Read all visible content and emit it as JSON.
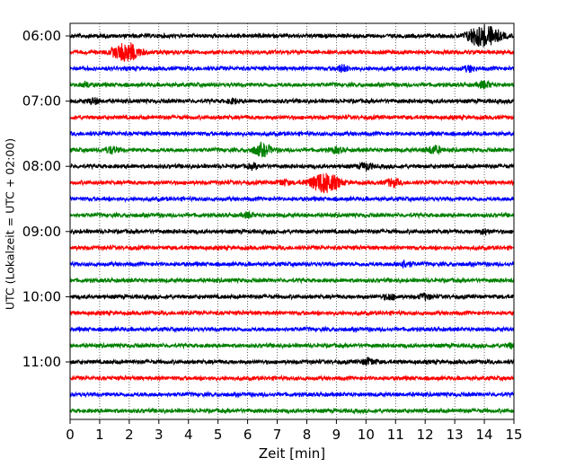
{
  "chart_data": {
    "type": "line",
    "title": "",
    "xlabel": "Zeit  [min]",
    "ylabel": "UTC (Lokalzeit = UTC + 02:00)",
    "xlim": [
      0,
      15
    ],
    "x_ticks": [
      "0",
      "1",
      "2",
      "3",
      "4",
      "5",
      "6",
      "7",
      "8",
      "9",
      "10",
      "11",
      "12",
      "13",
      "14",
      "15"
    ],
    "y_tick_labels": [
      "06:00",
      "07:00",
      "08:00",
      "09:00",
      "10:00",
      "11:00"
    ],
    "y_tick_rows": [
      0,
      4,
      8,
      12,
      16,
      20
    ],
    "rows": 24,
    "grid": "vertical dotted",
    "legend": "none",
    "series_colors": [
      "#000000",
      "#ff0000",
      "#0000ff",
      "#008000"
    ],
    "events": [
      {
        "row": 0,
        "minute": 14.05,
        "amplitude": 1.0
      },
      {
        "row": 0,
        "minute": 13.6,
        "amplitude": 0.35
      },
      {
        "row": 1,
        "minute": 1.9,
        "amplitude": 0.9
      },
      {
        "row": 2,
        "minute": 9.2,
        "amplitude": 0.3
      },
      {
        "row": 2,
        "minute": 13.5,
        "amplitude": 0.25
      },
      {
        "row": 3,
        "minute": 14.0,
        "amplitude": 0.3
      },
      {
        "row": 3,
        "minute": 0.5,
        "amplitude": 0.2
      },
      {
        "row": 4,
        "minute": 0.8,
        "amplitude": 0.25
      },
      {
        "row": 4,
        "minute": 5.5,
        "amplitude": 0.2
      },
      {
        "row": 7,
        "minute": 6.5,
        "amplitude": 0.55
      },
      {
        "row": 7,
        "minute": 1.4,
        "amplitude": 0.3
      },
      {
        "row": 7,
        "minute": 12.3,
        "amplitude": 0.35
      },
      {
        "row": 7,
        "minute": 9.0,
        "amplitude": 0.25
      },
      {
        "row": 8,
        "minute": 10.0,
        "amplitude": 0.3
      },
      {
        "row": 8,
        "minute": 6.2,
        "amplitude": 0.2
      },
      {
        "row": 9,
        "minute": 8.6,
        "amplitude": 1.0
      },
      {
        "row": 9,
        "minute": 10.9,
        "amplitude": 0.35
      },
      {
        "row": 9,
        "minute": 7.2,
        "amplitude": 0.25
      },
      {
        "row": 11,
        "minute": 6.0,
        "amplitude": 0.2
      },
      {
        "row": 12,
        "minute": 14.0,
        "amplitude": 0.2
      },
      {
        "row": 14,
        "minute": 11.3,
        "amplitude": 0.3
      },
      {
        "row": 16,
        "minute": 10.8,
        "amplitude": 0.25
      },
      {
        "row": 16,
        "minute": 12.0,
        "amplitude": 0.25
      },
      {
        "row": 19,
        "minute": 15.0,
        "amplitude": 0.25
      },
      {
        "row": 20,
        "minute": 10.1,
        "amplitude": 0.3
      }
    ]
  }
}
